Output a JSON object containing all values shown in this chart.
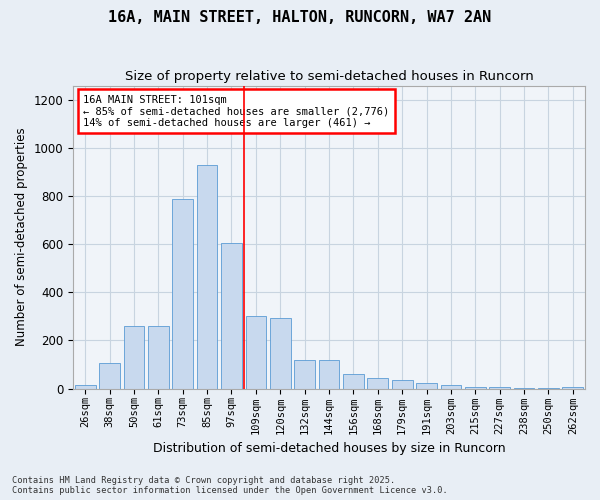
{
  "title1": "16A, MAIN STREET, HALTON, RUNCORN, WA7 2AN",
  "title2": "Size of property relative to semi-detached houses in Runcorn",
  "xlabel": "Distribution of semi-detached houses by size in Runcorn",
  "ylabel": "Number of semi-detached properties",
  "categories": [
    "26sqm",
    "38sqm",
    "50sqm",
    "61sqm",
    "73sqm",
    "85sqm",
    "97sqm",
    "109sqm",
    "120sqm",
    "132sqm",
    "144sqm",
    "156sqm",
    "168sqm",
    "179sqm",
    "191sqm",
    "203sqm",
    "215sqm",
    "227sqm",
    "238sqm",
    "250sqm",
    "262sqm"
  ],
  "values": [
    15,
    105,
    260,
    260,
    790,
    930,
    605,
    300,
    295,
    120,
    120,
    60,
    45,
    35,
    25,
    15,
    8,
    5,
    3,
    2,
    8
  ],
  "bar_color": "#c8d9ee",
  "bar_edge_color": "#5b9bd5",
  "vline_x_index": 6,
  "annotation_text_line1": "16A MAIN STREET: 101sqm",
  "annotation_text_line2": "← 85% of semi-detached houses are smaller (2,776)",
  "annotation_text_line3": "14% of semi-detached houses are larger (461) →",
  "ylim": [
    0,
    1260
  ],
  "yticks": [
    0,
    200,
    400,
    600,
    800,
    1000,
    1200
  ],
  "footer1": "Contains HM Land Registry data © Crown copyright and database right 2025.",
  "footer2": "Contains public sector information licensed under the Open Government Licence v3.0.",
  "bg_color": "#e8eef5",
  "plot_bg_color": "#f0f4f9",
  "grid_color": "#c8d4e0"
}
